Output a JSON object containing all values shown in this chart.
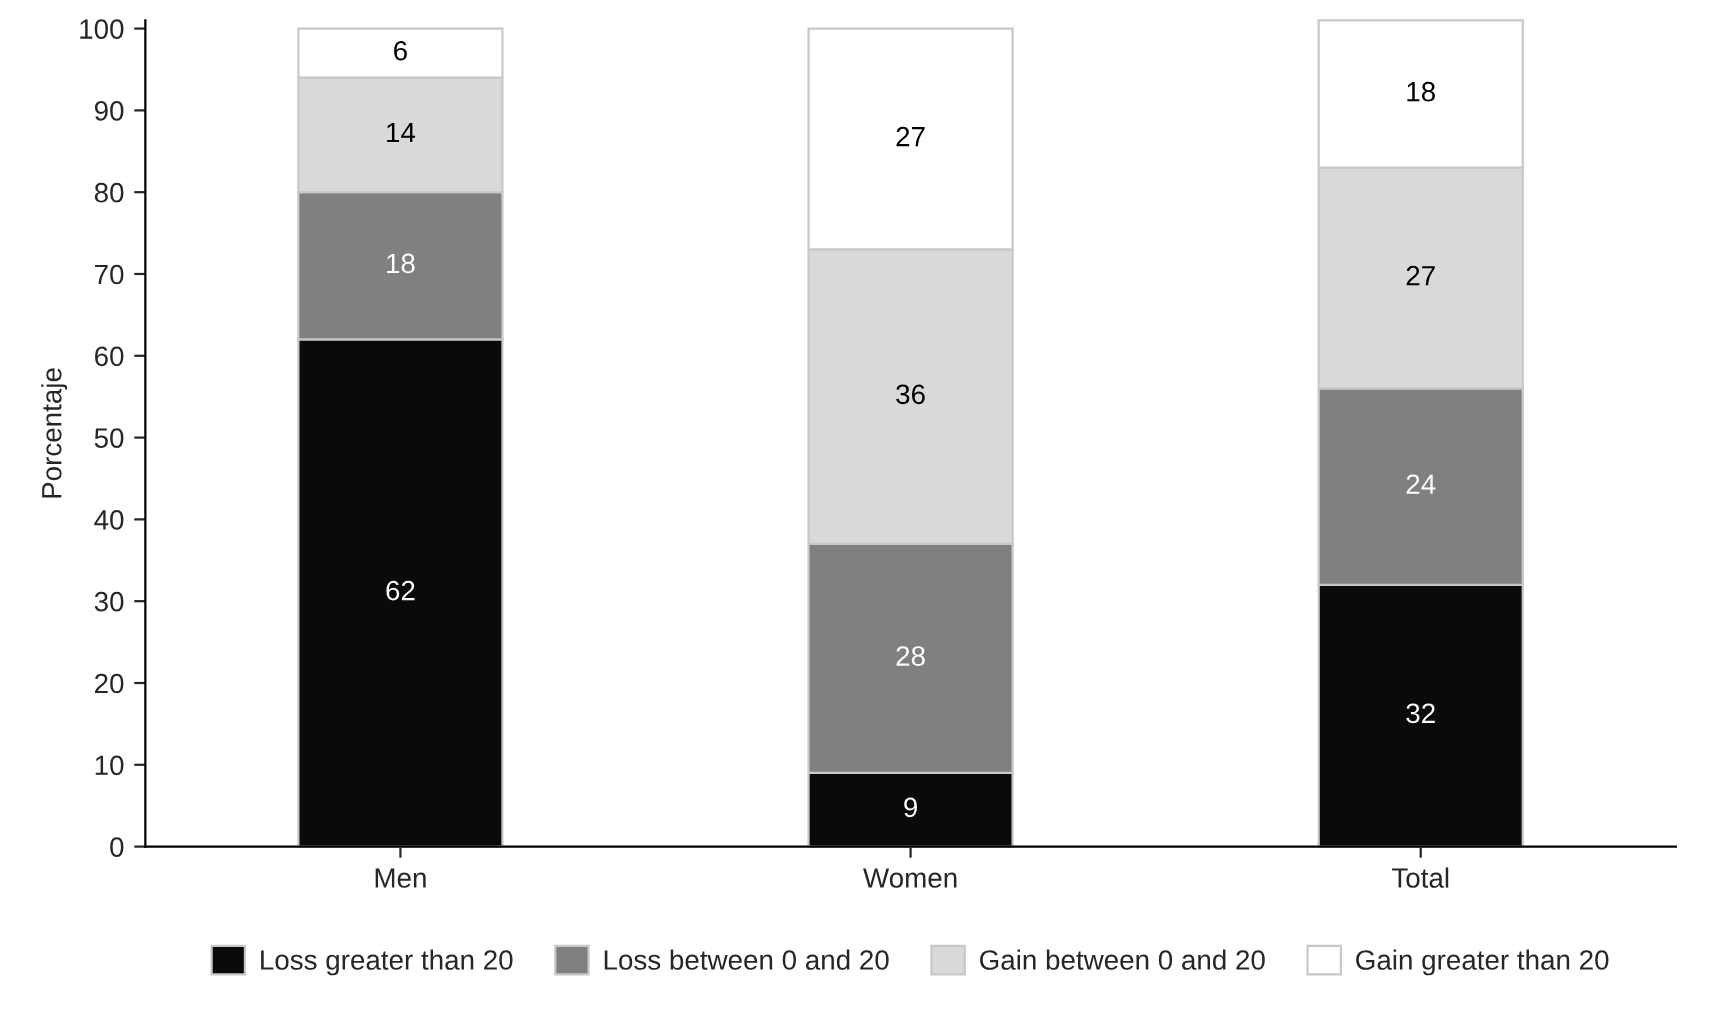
{
  "chart_data": {
    "type": "bar",
    "stacked": true,
    "ylabel": "Porcentaje",
    "categories": [
      "Men",
      "Women",
      "Total"
    ],
    "series": [
      {
        "name": "Loss greater than 20",
        "color": "#0a0a0a",
        "values": [
          62,
          9,
          32
        ]
      },
      {
        "name": "Loss between 0 and 20",
        "color": "#808080",
        "values": [
          18,
          28,
          24
        ]
      },
      {
        "name": "Gain between 0 and 20",
        "color": "#d9d9d9",
        "values": [
          14,
          36,
          27
        ]
      },
      {
        "name": "Gain greater than 20",
        "color": "#ffffff",
        "values": [
          6,
          27,
          18
        ]
      }
    ],
    "ylim": [
      0,
      101
    ],
    "yticks": [
      0,
      10,
      20,
      30,
      40,
      50,
      60,
      70,
      80,
      90,
      100
    ],
    "data_labels": true,
    "grid": false,
    "legend": "bottom"
  }
}
